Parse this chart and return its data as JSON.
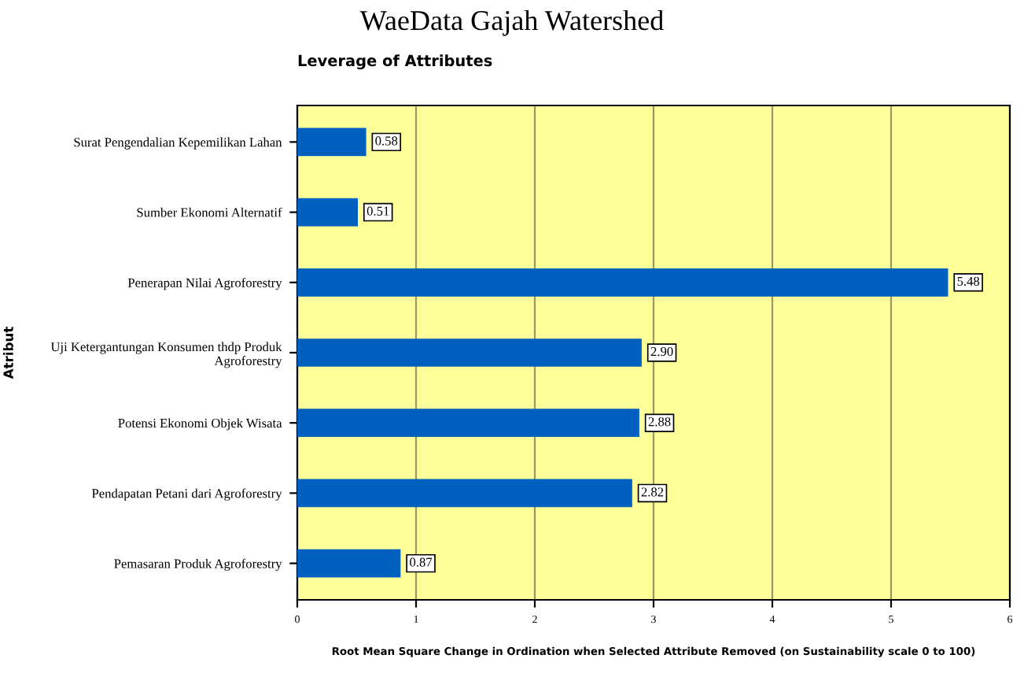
{
  "chart_data": {
    "type": "bar",
    "orientation": "horizontal",
    "title": "Leverage of Attributes",
    "annotations": [
      "WaeData Gajah Watershed"
    ],
    "xlabel": "Root Mean Square Change in Ordination when Selected Attribute Removed (on Sustainability scale 0 to 100)",
    "ylabel": "Atribut",
    "categories": [
      "Surat Pengendalian Kepemilikan Lahan",
      "Sumber Ekonomi Alternatif",
      "Penerapan Nilai Agroforestry",
      "Uji Ketergantungan Konsumen thdp Produk Agroforestry",
      "Potensi Ekonomi Objek Wisata",
      "Pendapatan Petani dari Agroforestry",
      "Pemasaran Produk Agroforestry"
    ],
    "values": [
      0.58,
      0.51,
      5.48,
      2.9,
      2.88,
      2.82,
      0.87
    ],
    "value_labels": [
      "0.58",
      "0.51",
      "5.48",
      "2.90",
      "2.88",
      "2.82",
      "0.87"
    ],
    "color": "#0060c0",
    "xlim": [
      0,
      6
    ],
    "xticks": [
      0,
      1,
      2,
      3,
      4,
      5,
      6
    ],
    "grid": "x"
  }
}
